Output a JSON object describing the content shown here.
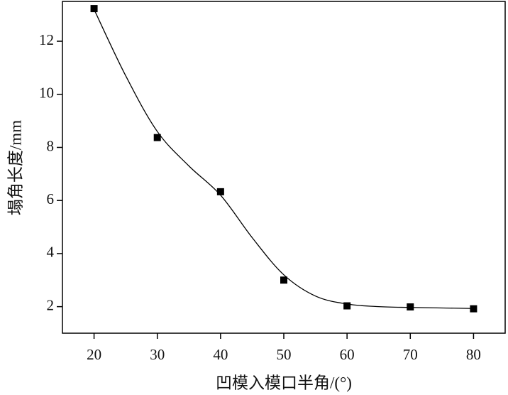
{
  "chart_data": {
    "type": "scatter",
    "xlabel": "凹模入模口半角/(°)",
    "ylabel": "塌角长度/mm",
    "xlim": [
      15,
      85
    ],
    "xticks": [
      20,
      30,
      40,
      50,
      60,
      70,
      80
    ],
    "ylim": [
      1,
      13.5
    ],
    "yticks": [
      2,
      4,
      6,
      8,
      10,
      12
    ],
    "series": [
      {
        "type": "scatter",
        "marker": "square",
        "color": "#000000",
        "x": [
          20,
          30,
          40,
          50,
          60,
          70,
          80
        ],
        "values": [
          13.23,
          8.37,
          6.33,
          3.0,
          2.03,
          1.99,
          1.92
        ]
      },
      {
        "type": "line",
        "smooth": true,
        "color": "#000000",
        "x": [
          20,
          25,
          30,
          35,
          40,
          45,
          50,
          55,
          60,
          65,
          70,
          75,
          80
        ],
        "values": [
          13.2,
          10.7,
          8.6,
          7.3,
          6.2,
          4.6,
          3.2,
          2.4,
          2.1,
          2.0,
          1.97,
          1.95,
          1.93
        ]
      }
    ]
  }
}
